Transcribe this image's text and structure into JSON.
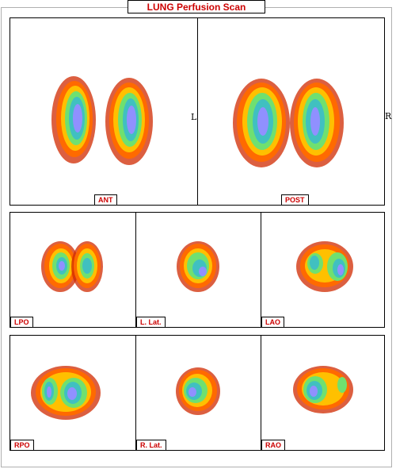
{
  "title": "LUNG Perfusion Scan",
  "orientation": {
    "left_marker": "L",
    "right_marker": "R"
  },
  "views": {
    "ant": "ANT",
    "post": "POST",
    "lpo": "LPO",
    "llat": "L. Lat.",
    "lao": "LAO",
    "rpo": "RPO",
    "rlat": "R. Lat.",
    "rao": "RAO"
  },
  "colors": {
    "title_text": "#cc0000",
    "label_text": "#cc0000",
    "scale": [
      "#c81e00",
      "#ee5a00",
      "#ffb000",
      "#f8ee10",
      "#70e060",
      "#40c0b8",
      "#8080ff",
      "#c0a8ff"
    ]
  }
}
